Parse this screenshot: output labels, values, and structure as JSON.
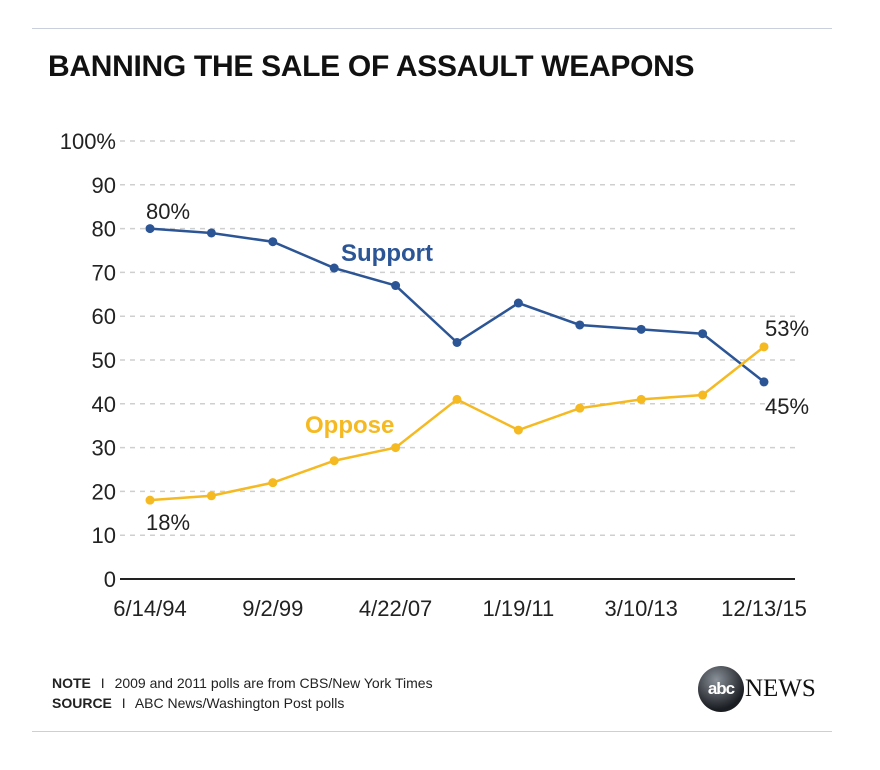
{
  "chart_data": {
    "type": "line",
    "title": "BANNING THE SALE OF ASSAULT WEAPONS",
    "xlabel": "",
    "ylabel": "",
    "ylim": [
      0,
      100
    ],
    "y_ticks": [
      "0",
      "10",
      "20",
      "30",
      "40",
      "50",
      "60",
      "70",
      "80",
      "90",
      "100%"
    ],
    "x_tick_labels": [
      {
        "index": 0,
        "label": "6/14/94"
      },
      {
        "index": 2,
        "label": "9/2/99"
      },
      {
        "index": 4,
        "label": "4/22/07"
      },
      {
        "index": 6,
        "label": "1/19/11"
      },
      {
        "index": 8,
        "label": "3/10/13"
      },
      {
        "index": 10,
        "label": "12/13/15"
      }
    ],
    "grid": true,
    "series": [
      {
        "name": "Support",
        "color": "#2c5596",
        "values": [
          80,
          79,
          77,
          71,
          67,
          54,
          63,
          58,
          57,
          56,
          45
        ]
      },
      {
        "name": "Oppose",
        "color": "#f5b921",
        "values": [
          18,
          19,
          22,
          27,
          30,
          41,
          34,
          39,
          41,
          42,
          53
        ]
      }
    ],
    "annotations": [
      "80%",
      "18%",
      "53%",
      "45%"
    ]
  },
  "footer": {
    "note_label": "NOTE",
    "note_text": "2009 and 2011 polls are from CBS/New York Times",
    "source_label": "SOURCE",
    "source_text": "ABC News/Washington Post polls",
    "separator": "I"
  },
  "logo": {
    "mark": "abc",
    "text": "NEWS"
  }
}
